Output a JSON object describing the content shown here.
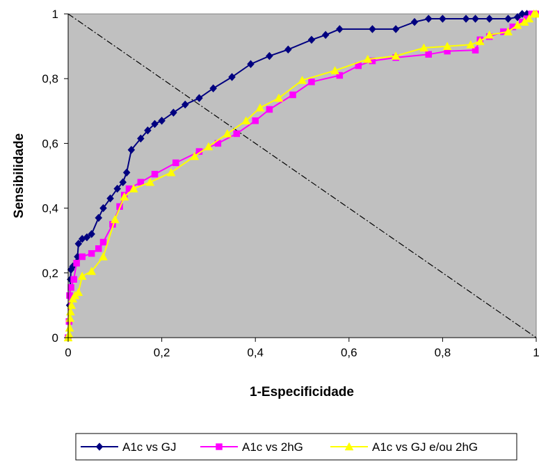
{
  "chart_data": {
    "type": "line",
    "title": "",
    "xlabel": "1-Especificidade",
    "ylabel": "Sensibilidade",
    "xlim": [
      0,
      1
    ],
    "ylim": [
      0,
      1
    ],
    "xticks": [
      "0",
      "0,2",
      "0,4",
      "0,6",
      "0,8",
      "1"
    ],
    "yticks": [
      "0",
      "0,2",
      "0,4",
      "0,6",
      "0,8",
      "1"
    ],
    "grid": false,
    "plot_background": "#c0c0c0",
    "legend_position": "bottom",
    "reference_line": {
      "from": [
        0,
        1
      ],
      "to": [
        1,
        0
      ],
      "style": "dash-dot",
      "color": "#000000"
    },
    "series": [
      {
        "name": "A1c vs GJ",
        "color": "#000080",
        "marker": "diamond",
        "points": [
          [
            0,
            0
          ],
          [
            0.003,
            0.1
          ],
          [
            0.005,
            0.18
          ],
          [
            0.006,
            0.21
          ],
          [
            0.01,
            0.22
          ],
          [
            0.02,
            0.25
          ],
          [
            0.022,
            0.29
          ],
          [
            0.03,
            0.305
          ],
          [
            0.04,
            0.31
          ],
          [
            0.05,
            0.32
          ],
          [
            0.065,
            0.37
          ],
          [
            0.075,
            0.4
          ],
          [
            0.09,
            0.43
          ],
          [
            0.105,
            0.46
          ],
          [
            0.117,
            0.48
          ],
          [
            0.125,
            0.51
          ],
          [
            0.135,
            0.58
          ],
          [
            0.155,
            0.615
          ],
          [
            0.17,
            0.64
          ],
          [
            0.185,
            0.66
          ],
          [
            0.2,
            0.67
          ],
          [
            0.225,
            0.695
          ],
          [
            0.25,
            0.72
          ],
          [
            0.28,
            0.74
          ],
          [
            0.31,
            0.77
          ],
          [
            0.35,
            0.805
          ],
          [
            0.39,
            0.845
          ],
          [
            0.43,
            0.87
          ],
          [
            0.47,
            0.89
          ],
          [
            0.52,
            0.92
          ],
          [
            0.55,
            0.935
          ],
          [
            0.58,
            0.953
          ],
          [
            0.65,
            0.953
          ],
          [
            0.7,
            0.953
          ],
          [
            0.74,
            0.975
          ],
          [
            0.77,
            0.985
          ],
          [
            0.8,
            0.985
          ],
          [
            0.85,
            0.985
          ],
          [
            0.87,
            0.985
          ],
          [
            0.9,
            0.985
          ],
          [
            0.94,
            0.985
          ],
          [
            0.96,
            0.99
          ],
          [
            0.97,
            1.0
          ],
          [
            0.98,
            1.0
          ],
          [
            1.0,
            1.0
          ]
        ]
      },
      {
        "name": "A1c vs 2hG",
        "color": "#ff00ff",
        "marker": "square",
        "points": [
          [
            0,
            0
          ],
          [
            0.002,
            0.05
          ],
          [
            0.003,
            0.13
          ],
          [
            0.006,
            0.155
          ],
          [
            0.012,
            0.18
          ],
          [
            0.018,
            0.23
          ],
          [
            0.03,
            0.25
          ],
          [
            0.05,
            0.26
          ],
          [
            0.065,
            0.275
          ],
          [
            0.075,
            0.295
          ],
          [
            0.095,
            0.35
          ],
          [
            0.11,
            0.405
          ],
          [
            0.12,
            0.44
          ],
          [
            0.13,
            0.46
          ],
          [
            0.155,
            0.48
          ],
          [
            0.185,
            0.505
          ],
          [
            0.23,
            0.54
          ],
          [
            0.28,
            0.575
          ],
          [
            0.32,
            0.6
          ],
          [
            0.36,
            0.63
          ],
          [
            0.4,
            0.67
          ],
          [
            0.43,
            0.705
          ],
          [
            0.48,
            0.75
          ],
          [
            0.52,
            0.79
          ],
          [
            0.58,
            0.81
          ],
          [
            0.62,
            0.84
          ],
          [
            0.65,
            0.855
          ],
          [
            0.7,
            0.865
          ],
          [
            0.77,
            0.875
          ],
          [
            0.81,
            0.885
          ],
          [
            0.87,
            0.888
          ],
          [
            0.88,
            0.92
          ],
          [
            0.9,
            0.93
          ],
          [
            0.93,
            0.945
          ],
          [
            0.95,
            0.96
          ],
          [
            0.97,
            0.975
          ],
          [
            0.98,
            0.985
          ],
          [
            0.99,
            1.0
          ],
          [
            1.0,
            1.0
          ]
        ]
      },
      {
        "name": "A1c vs GJ e/ou 2hG",
        "color": "#ffff00",
        "marker": "triangle",
        "points": [
          [
            0,
            0
          ],
          [
            0.002,
            0.01
          ],
          [
            0.003,
            0.03
          ],
          [
            0.004,
            0.06
          ],
          [
            0.005,
            0.08
          ],
          [
            0.007,
            0.1
          ],
          [
            0.01,
            0.12
          ],
          [
            0.015,
            0.13
          ],
          [
            0.022,
            0.14
          ],
          [
            0.03,
            0.19
          ],
          [
            0.05,
            0.205
          ],
          [
            0.075,
            0.25
          ],
          [
            0.1,
            0.365
          ],
          [
            0.12,
            0.435
          ],
          [
            0.14,
            0.46
          ],
          [
            0.175,
            0.48
          ],
          [
            0.22,
            0.51
          ],
          [
            0.27,
            0.56
          ],
          [
            0.3,
            0.59
          ],
          [
            0.34,
            0.63
          ],
          [
            0.38,
            0.67
          ],
          [
            0.41,
            0.71
          ],
          [
            0.45,
            0.74
          ],
          [
            0.5,
            0.795
          ],
          [
            0.57,
            0.825
          ],
          [
            0.64,
            0.86
          ],
          [
            0.7,
            0.87
          ],
          [
            0.76,
            0.895
          ],
          [
            0.81,
            0.9
          ],
          [
            0.86,
            0.905
          ],
          [
            0.88,
            0.915
          ],
          [
            0.9,
            0.935
          ],
          [
            0.94,
            0.945
          ],
          [
            0.96,
            0.965
          ],
          [
            0.975,
            0.975
          ],
          [
            0.985,
            0.985
          ],
          [
            0.995,
            1.0
          ],
          [
            1.0,
            1.0
          ]
        ]
      }
    ]
  }
}
